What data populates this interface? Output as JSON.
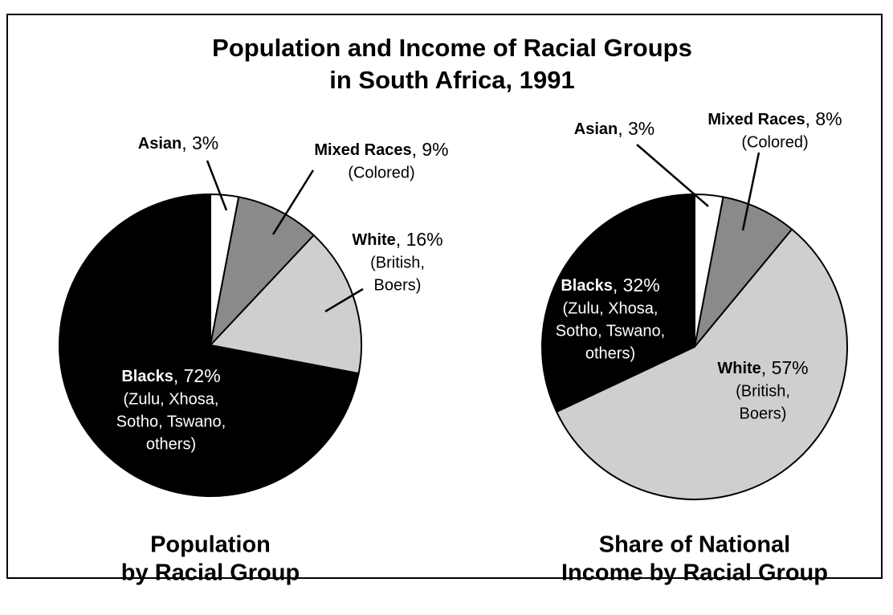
{
  "title": [
    "Population and Income of Racial Groups",
    "in South Africa, 1991"
  ],
  "chart_data": [
    {
      "type": "pie",
      "title": [
        "Population",
        "by Racial Group"
      ],
      "categories": [
        "Asian",
        "Mixed Races",
        "White",
        "Blacks"
      ],
      "values": [
        3,
        9,
        16,
        72
      ],
      "value_labels": [
        ", 3%",
        ", 9%",
        ", 16%",
        ", 72%"
      ],
      "notes": [
        [],
        [
          "(Colored)"
        ],
        [
          "(British,",
          "Boers)"
        ],
        [
          "(Zulu, Xhosa,",
          "Sotho, Tswano,",
          "others)"
        ]
      ],
      "colors": [
        "#ffffff",
        "#8a8a8a",
        "#cfcfcf",
        "#000000"
      ]
    },
    {
      "type": "pie",
      "title": [
        "Share of National",
        "Income by Racial Group"
      ],
      "categories": [
        "Asian",
        "Mixed Races",
        "White",
        "Blacks"
      ],
      "values": [
        3,
        8,
        57,
        32
      ],
      "value_labels": [
        ", 3%",
        ", 8%",
        ", 57%",
        ", 32%"
      ],
      "notes": [
        [],
        [
          "(Colored)"
        ],
        [
          "(British,",
          "Boers)"
        ],
        [
          "(Zulu, Xhosa,",
          "Sotho, Tswano,",
          "others)"
        ]
      ],
      "colors": [
        "#ffffff",
        "#8a8a8a",
        "#cfcfcf",
        "#000000"
      ]
    }
  ]
}
